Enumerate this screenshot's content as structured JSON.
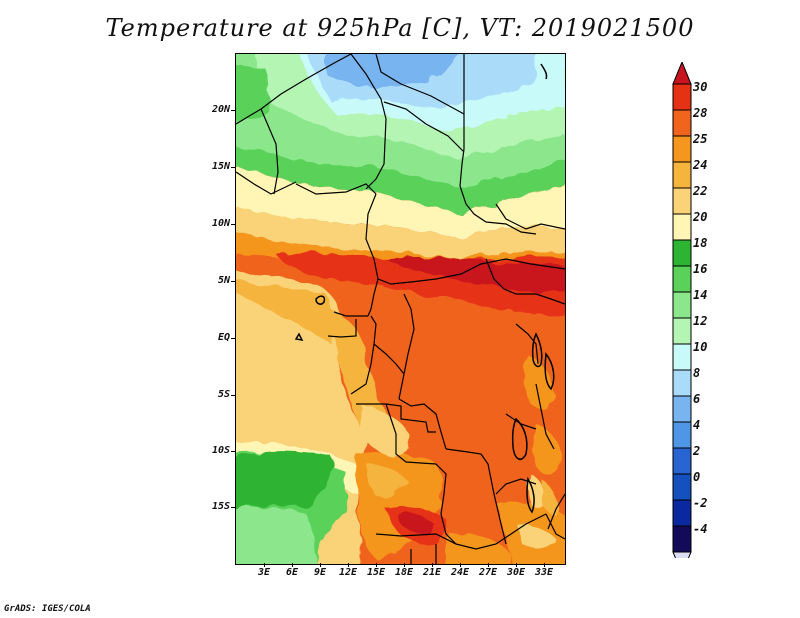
{
  "title": "Temperature at 925hPa [C], VT: 2019021500",
  "credit": "GrADS: IGES/COLA",
  "lat_labels": [
    "20N",
    "15N",
    "10N",
    "5N",
    "EQ",
    "5S",
    "10S",
    "15S"
  ],
  "lon_labels": [
    "3E",
    "6E",
    "9E",
    "12E",
    "15E",
    "18E",
    "21E",
    "24E",
    "27E",
    "30E",
    "33E"
  ],
  "colorbar": {
    "labels": [
      "30",
      "28",
      "25",
      "24",
      "22",
      "20",
      "18",
      "16",
      "14",
      "12",
      "10",
      "8",
      "6",
      "4",
      "2",
      "0",
      "-2",
      "-4"
    ],
    "colors": [
      "#c8141e",
      "#e63214",
      "#f0641e",
      "#f5961e",
      "#f5b43c",
      "#fad278",
      "#fff5b4",
      "#2db432",
      "#5ad25a",
      "#8ce68c",
      "#b4f5b4",
      "#c8fafa",
      "#aadcfa",
      "#78b4f0",
      "#5096e6",
      "#2864d2",
      "#1450be",
      "#0a28a0",
      "#140a5a",
      "#dcdcf5"
    ]
  }
}
